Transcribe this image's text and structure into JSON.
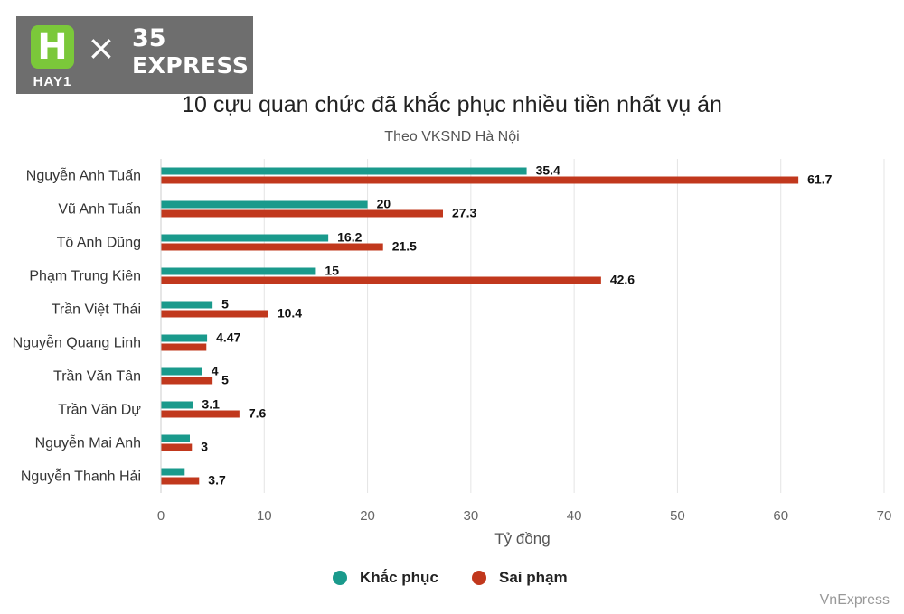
{
  "logo": {
    "letter": "H",
    "caption": "HAY1",
    "cross": "×",
    "brand_line1": "35",
    "brand_line2": "EXPRESS"
  },
  "title": "10 cựu quan chức đã khắc phục nhiều tiền nhất vụ án",
  "subtitle": "Theo VKSND Hà Nội",
  "source": "VnExpress",
  "colors": {
    "khac_phuc": "#1a9a8c",
    "sai_pham": "#c1381d"
  },
  "chart_data": {
    "type": "bar",
    "orientation": "horizontal",
    "title": "10 cựu quan chức đã khắc phục nhiều tiền nhất vụ án",
    "subtitle": "Theo VKSND Hà Nội",
    "xlabel": "Tỷ đồng",
    "ylabel": "",
    "xlim": [
      0,
      70
    ],
    "xticks": [
      0,
      10,
      20,
      30,
      40,
      50,
      60,
      70
    ],
    "grid": true,
    "legend_position": "bottom",
    "categories": [
      "Nguyễn Anh Tuấn",
      "Vũ Anh Tuấn",
      "Tô Anh Dũng",
      "Phạm Trung Kiên",
      "Trần Việt Thái",
      "Nguyễn Quang Linh",
      "Trần Văn Tân",
      "Trần Văn Dự",
      "Nguyễn Mai Anh",
      "Nguyễn Thanh Hải"
    ],
    "series": [
      {
        "name": "Khắc phục",
        "color": "#1a9a8c",
        "values": [
          35.4,
          20,
          16.2,
          15,
          5,
          4.47,
          4,
          3.1,
          2.8,
          2.3
        ],
        "labels": [
          "35.4",
          "20",
          "16.2",
          "15",
          "5",
          "4.47",
          "4",
          "3.1",
          "",
          ""
        ]
      },
      {
        "name": "Sai phạm",
        "color": "#c1381d",
        "values": [
          61.7,
          27.3,
          21.5,
          42.6,
          10.4,
          4.4,
          5,
          7.6,
          3,
          3.7
        ],
        "labels": [
          "61.7",
          "27.3",
          "21.5",
          "42.6",
          "10.4",
          "",
          "5",
          "7.6",
          "3",
          "3.7"
        ]
      }
    ]
  }
}
